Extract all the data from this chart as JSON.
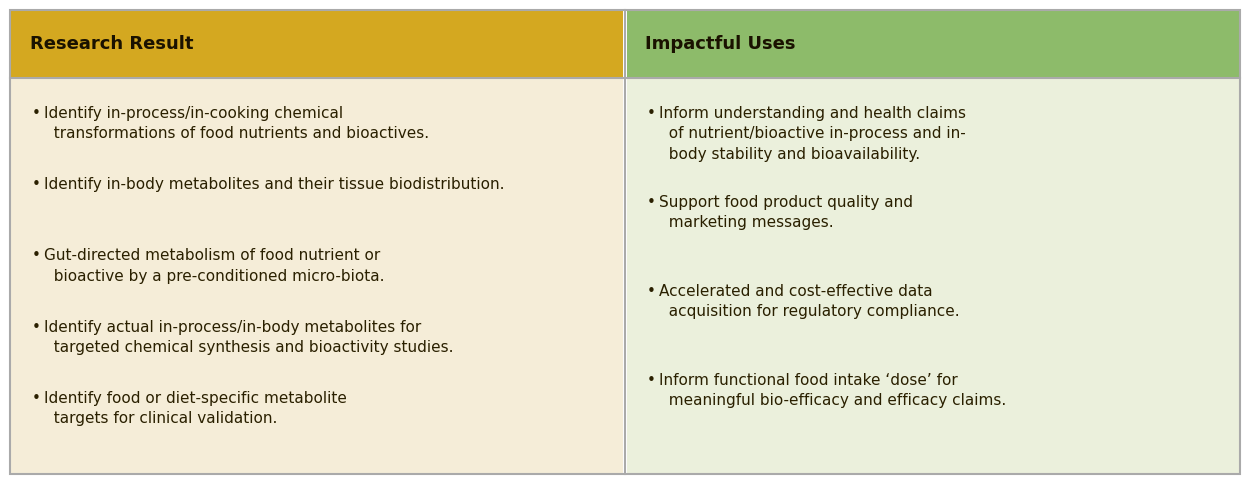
{
  "col1_header": "Research Result",
  "col2_header": "Impactful Uses",
  "col1_header_bg": "#D4A820",
  "col2_header_bg": "#8DBB6A",
  "col1_body_bg": "#F5EDD8",
  "col2_body_bg": "#EBF0DC",
  "header_text_color": "#1A1200",
  "body_text_color": "#2A2000",
  "border_color": "#AAAAAA",
  "col1_bullets": [
    "Identify in-process/in-cooking chemical\n  transformations of food nutrients and bioactives.",
    "Identify in-body metabolites and their tissue biodistribution.",
    "Gut-directed metabolism of food nutrient or\n  bioactive by a pre-conditioned micro-biota.",
    "Identify actual in-process/in-body metabolites for\n  targeted chemical synthesis and bioactivity studies.",
    "Identify food or diet-specific metabolite\n  targets for clinical validation."
  ],
  "col2_bullets": [
    "Inform understanding and health claims\n  of nutrient/bioactive in-process and in-\n  body stability and bioavailability.",
    "Support food product quality and\n  marketing messages.",
    "Accelerated and cost-effective data\n  acquisition for regulatory compliance.",
    "Inform functional food intake ‘dose’ for\n  meaningful bio-efficacy and efficacy claims."
  ],
  "figsize": [
    12.5,
    4.84
  ],
  "dpi": 100,
  "header_fontsize": 13,
  "body_fontsize": 11,
  "bullet_char": "•"
}
